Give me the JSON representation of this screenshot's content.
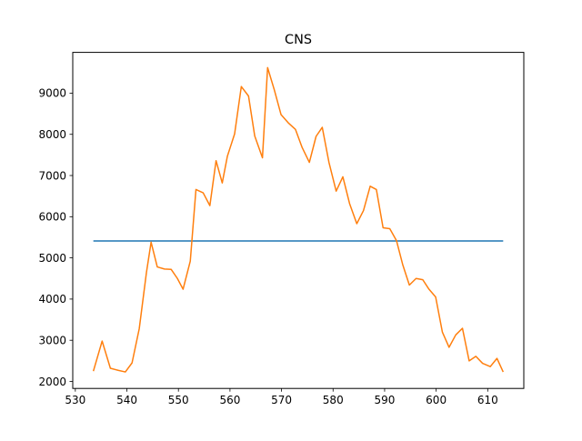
{
  "chart_data": {
    "type": "line",
    "title": "CNS",
    "xlabel": "",
    "ylabel": "",
    "xlim": [
      529.5,
      617
    ],
    "ylim": [
      1830,
      9990
    ],
    "x_ticks": [
      530,
      540,
      550,
      560,
      570,
      580,
      590,
      600,
      610
    ],
    "y_ticks": [
      2000,
      3000,
      4000,
      5000,
      6000,
      7000,
      8000,
      9000
    ],
    "grid": false,
    "legend": "none",
    "series": [
      {
        "color": "#1f77b4",
        "x": [
          533.5,
          613
        ],
        "y": [
          5410,
          5410
        ]
      },
      {
        "color": "#ff7f0e",
        "x": [
          533.5,
          535.2,
          536.8,
          538.3,
          539.7,
          541.0,
          542.4,
          543.8,
          544.7,
          545.9,
          547.3,
          548.6,
          549.8,
          550.9,
          552.3,
          553.4,
          554.8,
          556.1,
          557.3,
          558.5,
          559.5,
          560.9,
          562.2,
          563.6,
          564.8,
          566.3,
          567.3,
          568.6,
          569.9,
          571.3,
          572.7,
          574.0,
          575.4,
          576.7,
          577.9,
          579.2,
          580.6,
          581.9,
          583.2,
          584.6,
          585.9,
          587.2,
          588.4,
          589.7,
          591.0,
          592.3,
          593.5,
          594.8,
          596.1,
          597.4,
          598.6,
          599.9,
          601.2,
          602.5,
          603.8,
          605.1,
          606.4,
          607.7,
          609.0,
          610.5,
          611.8,
          613.0
        ],
        "y": [
          2250,
          2980,
          2320,
          2270,
          2230,
          2450,
          3280,
          4650,
          5380,
          4780,
          4730,
          4720,
          4500,
          4240,
          4920,
          6660,
          6580,
          6270,
          7360,
          6820,
          7470,
          8010,
          9160,
          8930,
          7960,
          7430,
          9620,
          9080,
          8480,
          8280,
          8120,
          7680,
          7320,
          7950,
          8170,
          7320,
          6620,
          6970,
          6320,
          5830,
          6150,
          6740,
          6660,
          5730,
          5710,
          5420,
          4840,
          4340,
          4500,
          4470,
          4240,
          4050,
          3200,
          2830,
          3130,
          3290,
          2500,
          2610,
          2440,
          2360,
          2560,
          2230
        ]
      }
    ]
  }
}
